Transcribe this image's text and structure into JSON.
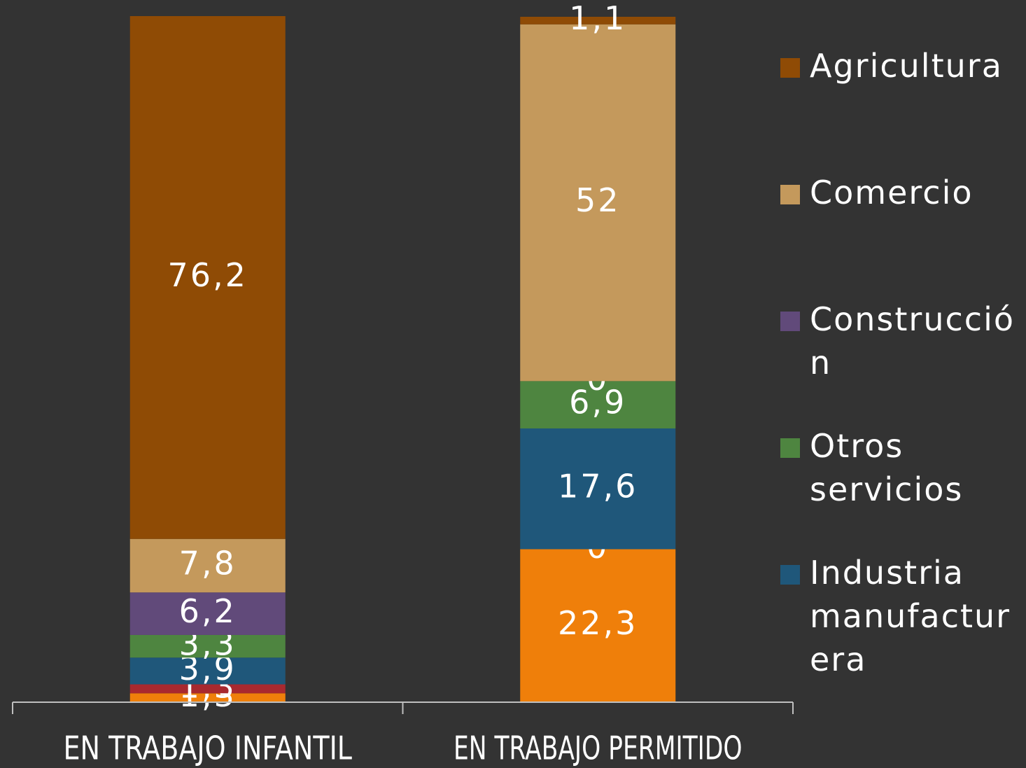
{
  "chart_data": {
    "type": "stacked_bar",
    "categories": [
      "EN TRABAJO INFANTIL",
      "EN TRABAJO PERMITIDO"
    ],
    "ylim": [
      0,
      100
    ],
    "series": [
      {
        "color": "#ef7f0a",
        "values": [
          1.3,
          22.3
        ],
        "value_labels": [
          "1,3",
          "22,3"
        ]
      },
      {
        "color": "#a8292f",
        "values": [
          1.3,
          0
        ],
        "value_labels": [
          "1,3",
          "0"
        ]
      },
      {
        "name": "Industria manufacturera",
        "color": "#1f577a",
        "values": [
          3.9,
          17.6
        ],
        "value_labels": [
          "3,9",
          "17,6"
        ]
      },
      {
        "name": "Otros servicios",
        "color": "#4e8540",
        "values": [
          3.3,
          6.9
        ],
        "value_labels": [
          "3,3",
          "6,9"
        ]
      },
      {
        "name": "Construcción",
        "color": "#614a7a",
        "values": [
          6.2,
          0
        ],
        "value_labels": [
          "6,2",
          "0"
        ]
      },
      {
        "name": "Comercio",
        "color": "#c4995c",
        "values": [
          7.8,
          52
        ],
        "value_labels": [
          "7,8",
          "52"
        ]
      },
      {
        "name": "Agricultura",
        "color": "#8f4b05",
        "values": [
          76.2,
          1.1
        ],
        "value_labels": [
          "76,2",
          "1,1"
        ]
      }
    ]
  }
}
